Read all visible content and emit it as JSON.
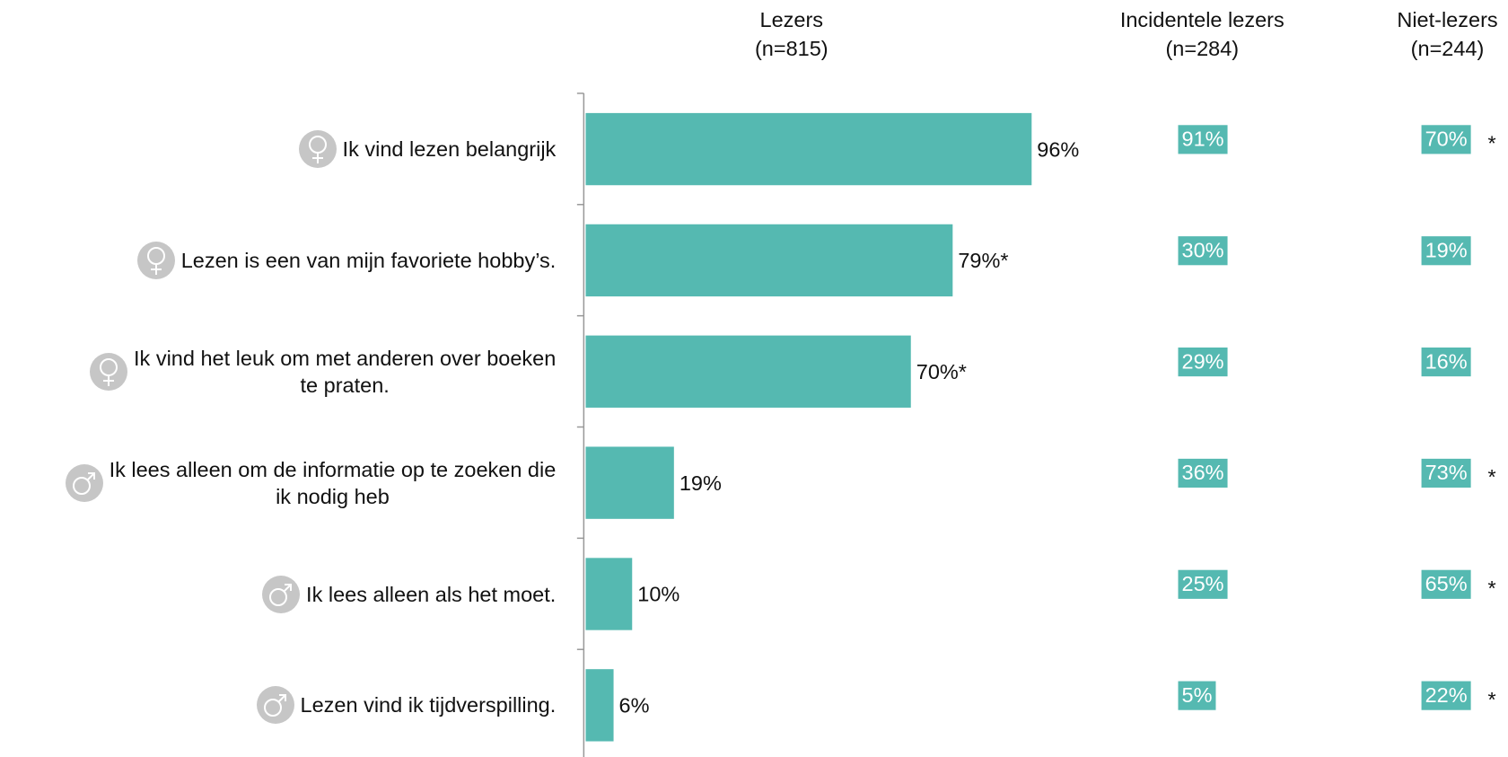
{
  "chart_data": {
    "type": "bar",
    "orientation": "horizontal",
    "categories": [
      "Ik vind lezen belangrijk",
      "Lezen is een van mijn favoriete hobby’s.",
      "Ik vind het leuk om met anderen over boeken\nte praten.",
      "Ik lees alleen om de informatie op te zoeken die\nik nodig heb",
      "Ik lees alleen als het moet.",
      "Lezen vind ik tijdverspilling."
    ],
    "xlim": [
      0,
      100
    ],
    "series": [
      {
        "name": "Lezers",
        "subtitle": "(n=815)",
        "style": "bar",
        "color": "#55b9b1",
        "values": [
          96,
          79,
          70,
          19,
          10,
          6
        ],
        "value_labels": [
          "96%",
          "79%*",
          "70%*",
          "19%",
          "10%",
          "6%"
        ]
      },
      {
        "name": "Incidentele lezers",
        "subtitle": "(n=284)",
        "style": "box",
        "color": "#55b9b1",
        "values": [
          91,
          30,
          29,
          36,
          25,
          5
        ],
        "value_labels": [
          "91%",
          "30%",
          "29%",
          "36%",
          "25%",
          "5%"
        ]
      },
      {
        "name": "Niet-lezers",
        "subtitle": "(n=244)",
        "style": "box",
        "color": "#55b9b1",
        "values": [
          70,
          19,
          16,
          73,
          65,
          22
        ],
        "value_labels": [
          "70%",
          "19%",
          "16%",
          "73%",
          "65%",
          "22%"
        ],
        "markers": [
          "*",
          null,
          null,
          "*",
          "*",
          "*"
        ]
      }
    ]
  }
}
